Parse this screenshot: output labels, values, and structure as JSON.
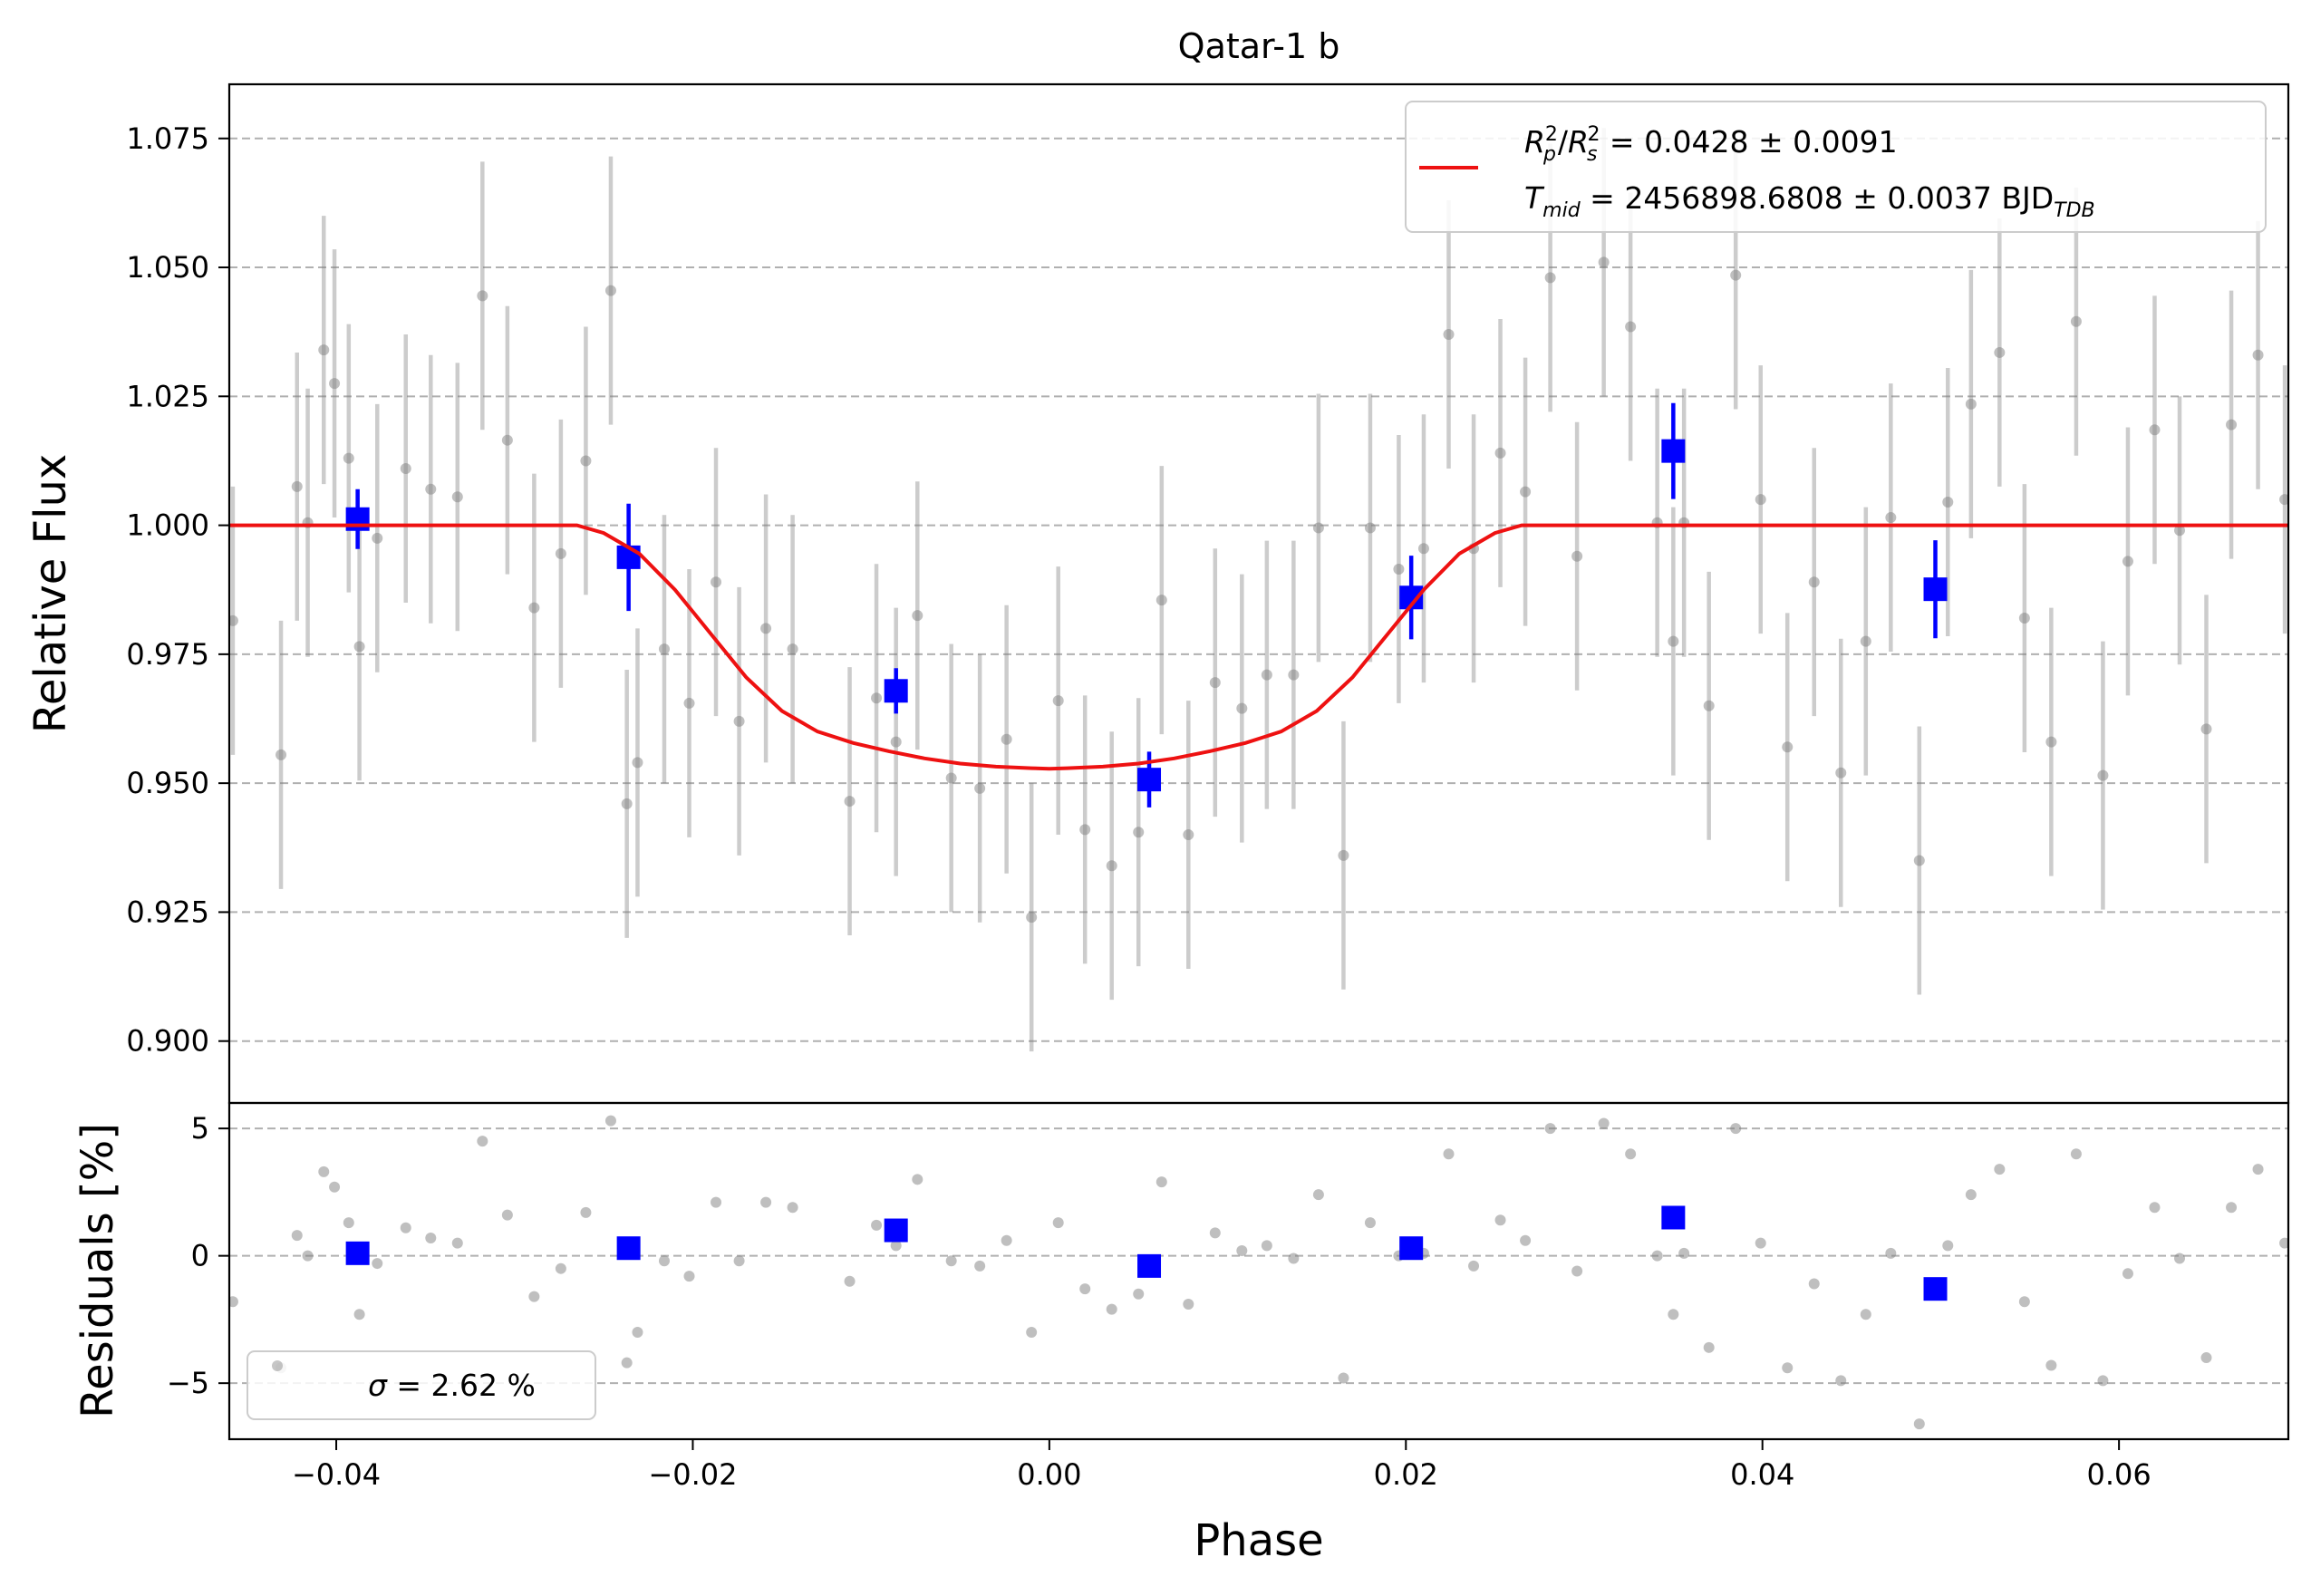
{
  "chart_data": [
    {
      "type": "scatter",
      "title": "Qatar-1 b",
      "xlabel": "",
      "ylabel": "Relative Flux",
      "xlim": [
        -0.046,
        0.0695
      ],
      "ylim": [
        0.888,
        1.0855
      ],
      "yticks": [
        0.9,
        0.925,
        0.95,
        0.975,
        1.0,
        1.025,
        1.05,
        1.075
      ],
      "ytick_labels": [
        "0.900",
        "0.925",
        "0.950",
        "0.975",
        "1.000",
        "1.025",
        "1.050",
        "1.075"
      ],
      "grid": "y-dashed",
      "legend": {
        "placement": "top-right",
        "line_color": "#ee1111",
        "entry_rp": {
          "sym_r": "R",
          "sub_p": "p",
          "sup_2a": "2",
          "sep": "/",
          "sub_s": "s",
          "sup_2b": "2",
          "value": " = 0.0428 ± 0.0091"
        },
        "entry_tmid": {
          "sym_t": "T",
          "sub_mid": "mid",
          "value": " = 2456898.6808 ± 0.0037 BJD",
          "sub_tdb": "TDB"
        }
      },
      "series": [
        {
          "name": "",
          "kind": "raw",
          "color": "#808080",
          "x": [
            -0.0458,
            -0.0431,
            -0.0422,
            -0.0416,
            -0.0407,
            -0.0401,
            -0.0393,
            -0.0387,
            -0.0377,
            -0.0361,
            -0.0347,
            -0.0332,
            -0.0318,
            -0.0304,
            -0.0289,
            -0.0274,
            -0.026,
            -0.0246,
            -0.0237,
            -0.0231,
            -0.0216,
            -0.0202,
            -0.0187,
            -0.0174,
            -0.0159,
            -0.0144,
            -0.0112,
            -0.0097,
            -0.0086,
            -0.0074,
            -0.0055,
            -0.0039,
            -0.0024,
            -0.001,
            0.0005,
            0.002,
            0.0035,
            0.005,
            0.0063,
            0.0078,
            0.0093,
            0.0108,
            0.0122,
            0.0137,
            0.0151,
            0.0165,
            0.018,
            0.0196,
            0.021,
            0.0224,
            0.0238,
            0.0253,
            0.0267,
            0.0281,
            0.0296,
            0.0311,
            0.0326,
            0.0341,
            0.035,
            0.0356,
            0.037,
            0.0385,
            0.0399,
            0.0414,
            0.0429,
            0.0444,
            0.0458,
            0.0472,
            0.0488,
            0.0504,
            0.0517,
            0.0533,
            0.0547,
            0.0562,
            0.0576,
            0.0591,
            0.0605,
            0.062,
            0.0634,
            0.0649,
            0.0663,
            0.0678,
            0.0693
          ],
          "y": [
            0.9815,
            0.9555,
            1.0075,
            1.0005,
            1.034,
            1.0275,
            1.013,
            0.9765,
            0.9975,
            1.011,
            1.007,
            1.0055,
            1.0445,
            1.0165,
            0.984,
            0.9945,
            1.0125,
            1.0455,
            0.946,
            0.954,
            0.976,
            0.9655,
            0.989,
            0.962,
            0.98,
            0.976,
            0.9465,
            0.9665,
            0.958,
            0.9825,
            0.951,
            0.949,
            0.9585,
            0.924,
            0.966,
            0.941,
            0.934,
            0.9405,
            0.9855,
            0.94,
            0.9695,
            0.9645,
            0.971,
            0.971,
            0.9995,
            0.936,
            0.9995,
            0.9915,
            0.9955,
            1.037,
            0.9955,
            1.014,
            1.0065,
            1.048,
            0.994,
            1.051,
            1.0385,
            1.0005,
            0.9775,
            1.0005,
            0.965,
            1.0485,
            1.005,
            0.957,
            0.989,
            0.952,
            0.9775,
            1.0015,
            0.935,
            1.0045,
            1.0235,
            1.0335,
            0.982,
            0.958,
            1.0395,
            0.9515,
            0.993,
            1.0185,
            0.999,
            0.9605,
            1.0195,
            1.033,
            1.005
          ],
          "yerr": 0.026
        },
        {
          "name": "",
          "kind": "binned",
          "color": "#0000ff",
          "x": [
            -0.0388,
            -0.0236,
            -0.0086,
            0.0056,
            0.0203,
            0.035,
            0.0497
          ],
          "y": [
            1.0012,
            0.9938,
            0.9679,
            0.9507,
            0.986,
            1.0144,
            0.9876
          ],
          "yerr": [
            0.0058,
            0.0104,
            0.0044,
            0.0054,
            0.0081,
            0.0093,
            0.0095
          ]
        },
        {
          "name": "",
          "kind": "model",
          "color": "#ee1111",
          "x": [
            -0.046,
            -0.0265,
            -0.025,
            -0.023,
            -0.021,
            -0.019,
            -0.017,
            -0.015,
            -0.013,
            -0.011,
            -0.009,
            -0.007,
            -0.005,
            -0.003,
            -0.001,
            0.0,
            0.001,
            0.003,
            0.005,
            0.007,
            0.009,
            0.011,
            0.013,
            0.015,
            0.017,
            0.019,
            0.021,
            0.023,
            0.025,
            0.0265,
            0.0695
          ],
          "y": [
            1.0,
            1.0,
            0.9985,
            0.9945,
            0.9875,
            0.979,
            0.9705,
            0.964,
            0.96,
            0.9578,
            0.9562,
            0.9548,
            0.9538,
            0.9532,
            0.9529,
            0.9528,
            0.9529,
            0.9532,
            0.9538,
            0.9548,
            0.9562,
            0.9578,
            0.96,
            0.964,
            0.9705,
            0.979,
            0.9875,
            0.9945,
            0.9985,
            1.0,
            1.0
          ]
        }
      ]
    },
    {
      "type": "scatter",
      "title": "",
      "xlabel": "Phase",
      "ylabel": "Residuals [%]",
      "xlim": [
        -0.046,
        0.0695
      ],
      "ylim": [
        -7.2,
        6.0
      ],
      "yticks": [
        -5,
        0,
        5
      ],
      "ytick_labels": [
        "−5",
        "0",
        "5"
      ],
      "xticks": [
        -0.04,
        -0.02,
        0.0,
        0.02,
        0.04,
        0.06
      ],
      "xtick_labels": [
        "−0.04",
        "−0.02",
        "0.00",
        "0.02",
        "0.04",
        "0.06"
      ],
      "grid": "y-dashed",
      "legend": {
        "placement": "bottom-left",
        "sigma_symbol": "σ",
        "sigma_value": " = 2.62 %"
      },
      "series": [
        {
          "name": "",
          "kind": "raw",
          "color": "#808080",
          "x": [
            -0.0458,
            -0.0431,
            -0.0422,
            -0.0416,
            -0.0407,
            -0.0401,
            -0.0393,
            -0.0387,
            -0.0377,
            -0.0361,
            -0.0347,
            -0.0332,
            -0.0318,
            -0.0304,
            -0.0289,
            -0.0274,
            -0.026,
            -0.0246,
            -0.0237,
            -0.0231,
            -0.0216,
            -0.0202,
            -0.0187,
            -0.0174,
            -0.0159,
            -0.0144,
            -0.0112,
            -0.0097,
            -0.0086,
            -0.0074,
            -0.0055,
            -0.0039,
            -0.0024,
            -0.001,
            0.0005,
            0.002,
            0.0035,
            0.005,
            0.0063,
            0.0078,
            0.0093,
            0.0108,
            0.0122,
            0.0137,
            0.0151,
            0.0165,
            0.018,
            0.0196,
            0.021,
            0.0224,
            0.0238,
            0.0253,
            0.0267,
            0.0281,
            0.0296,
            0.0311,
            0.0326,
            0.0341,
            0.035,
            0.0356,
            0.037,
            0.0385,
            0.0399,
            0.0414,
            0.0429,
            0.0444,
            0.0458,
            0.0472,
            0.0488,
            0.0504,
            0.0517,
            0.0533,
            0.0547,
            0.0562,
            0.0576,
            0.0591,
            0.0605,
            0.062,
            0.0634,
            0.0649,
            0.0663,
            0.0678,
            0.0693
          ],
          "y": [
            -1.8,
            -4.4,
            0.8,
            0.0,
            3.3,
            2.7,
            1.3,
            -2.3,
            -0.3,
            1.1,
            0.7,
            0.5,
            4.5,
            1.6,
            -1.6,
            -0.5,
            1.7,
            5.3,
            -4.2,
            -3.0,
            -0.2,
            -0.8,
            2.1,
            -0.2,
            2.1,
            1.9,
            -1.0,
            1.2,
            0.4,
            3.0,
            -0.2,
            -0.4,
            0.6,
            -3.0,
            1.3,
            -1.3,
            -2.1,
            -1.5,
            2.9,
            -1.9,
            0.9,
            0.2,
            0.4,
            -0.1,
            2.4,
            -4.8,
            1.3,
            0.0,
            0.1,
            4.0,
            -0.4,
            1.4,
            0.6,
            5.0,
            -0.6,
            5.2,
            4.0,
            0.0,
            -2.3,
            0.1,
            -3.6,
            5.0,
            0.5,
            -4.4,
            -1.1,
            -4.9,
            -2.3,
            0.1,
            -6.6,
            0.4,
            2.4,
            3.4,
            -1.8,
            -4.3,
            4.0,
            -4.9,
            -0.7,
            1.9,
            -0.1,
            -4.0,
            1.9,
            3.4,
            0.5
          ]
        },
        {
          "name": "",
          "kind": "binned",
          "color": "#0000ff",
          "x": [
            -0.0388,
            -0.0236,
            -0.0086,
            0.0056,
            0.0203,
            0.035,
            0.0497
          ],
          "y": [
            0.1,
            0.3,
            1.0,
            -0.4,
            0.3,
            1.5,
            -1.3
          ]
        }
      ]
    }
  ]
}
